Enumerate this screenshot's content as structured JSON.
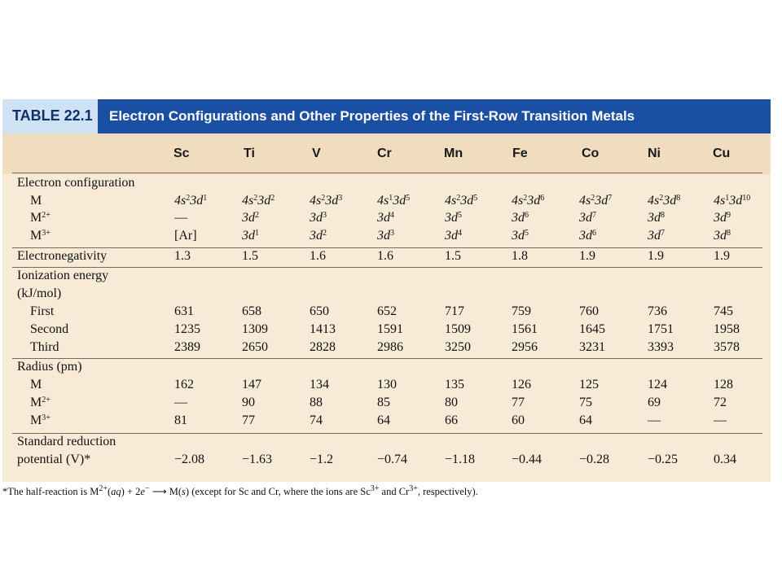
{
  "table": {
    "tag": "TABLE 22.1",
    "caption": "Electron Configurations and Other Properties of the First-Row Transition Metals",
    "columns": [
      "Sc",
      "Ti",
      "V",
      "Cr",
      "Mn",
      "Fe",
      "Co",
      "Ni",
      "Cu"
    ]
  },
  "sections": {
    "electron_configuration": "Electron configuration",
    "electronegativity": "Electronegativity",
    "ionization_energy": "Ionization energy",
    "ionization_unit": "(kJ/mol)",
    "radius": "Radius (pm)",
    "standard_reduction_1": "Standard reduction",
    "standard_reduction_2": "potential (V)*"
  },
  "row_labels": {
    "M": "M",
    "M2": "M",
    "M2_charge": "2+",
    "M3": "M",
    "M3_charge": "3+",
    "first": "First",
    "second": "Second",
    "third": "Third"
  },
  "config_M": [
    {
      "a": "4s",
      "b": "2",
      "c": "3d",
      "d": "1"
    },
    {
      "a": "4s",
      "b": "2",
      "c": "3d",
      "d": "2"
    },
    {
      "a": "4s",
      "b": "2",
      "c": "3d",
      "d": "3"
    },
    {
      "a": "4s",
      "b": "1",
      "c": "3d",
      "d": "5"
    },
    {
      "a": "4s",
      "b": "2",
      "c": "3d",
      "d": "5"
    },
    {
      "a": "4s",
      "b": "2",
      "c": "3d",
      "d": "6"
    },
    {
      "a": "4s",
      "b": "2",
      "c": "3d",
      "d": "7"
    },
    {
      "a": "4s",
      "b": "2",
      "c": "3d",
      "d": "8"
    },
    {
      "a": "4s",
      "b": "1",
      "c": "3d",
      "d": "10"
    }
  ],
  "config_M2": [
    {
      "dash": "—"
    },
    {
      "c": "3d",
      "d": "2"
    },
    {
      "c": "3d",
      "d": "3"
    },
    {
      "c": "3d",
      "d": "4"
    },
    {
      "c": "3d",
      "d": "5"
    },
    {
      "c": "3d",
      "d": "6"
    },
    {
      "c": "3d",
      "d": "7"
    },
    {
      "c": "3d",
      "d": "8"
    },
    {
      "c": "3d",
      "d": "9"
    }
  ],
  "config_M3": [
    {
      "text": "[Ar]"
    },
    {
      "c": "3d",
      "d": "1"
    },
    {
      "c": "3d",
      "d": "2"
    },
    {
      "c": "3d",
      "d": "3"
    },
    {
      "c": "3d",
      "d": "4"
    },
    {
      "c": "3d",
      "d": "5"
    },
    {
      "c": "3d",
      "d": "6"
    },
    {
      "c": "3d",
      "d": "7"
    },
    {
      "c": "3d",
      "d": "8"
    }
  ],
  "electronegativity": [
    "1.3",
    "1.5",
    "1.6",
    "1.6",
    "1.5",
    "1.8",
    "1.9",
    "1.9",
    "1.9"
  ],
  "ie_first": [
    "631",
    "658",
    "650",
    "652",
    "717",
    "759",
    "760",
    "736",
    "745"
  ],
  "ie_second": [
    "1235",
    "1309",
    "1413",
    "1591",
    "1509",
    "1561",
    "1645",
    "1751",
    "1958"
  ],
  "ie_third": [
    "2389",
    "2650",
    "2828",
    "2986",
    "3250",
    "2956",
    "3231",
    "3393",
    "3578"
  ],
  "radius_M": [
    "162",
    "147",
    "134",
    "130",
    "135",
    "126",
    "125",
    "124",
    "128"
  ],
  "radius_M2": [
    "—",
    "90",
    "88",
    "85",
    "80",
    "77",
    "75",
    "69",
    "72"
  ],
  "radius_M3": [
    "81",
    "77",
    "74",
    "64",
    "66",
    "60",
    "64",
    "—",
    "—"
  ],
  "reduction_potential": [
    "−2.08",
    "−1.63",
    "−1.2",
    "−0.74",
    "−1.18",
    "−0.44",
    "−0.28",
    "−0.25",
    "0.34"
  ],
  "footnote": {
    "p1": "*The half-reaction is M",
    "s1": "2+",
    "p2": "(",
    "i1": "aq",
    "p3": ") + 2",
    "i2": "e",
    "s2": "−",
    "p4": " ⟶ M(",
    "i3": "s",
    "p5": ") (except for Sc and Cr, where the ions are Sc",
    "s3": "3+",
    "p6": " and Cr",
    "s4": "3+",
    "p7": ", respectively)."
  }
}
